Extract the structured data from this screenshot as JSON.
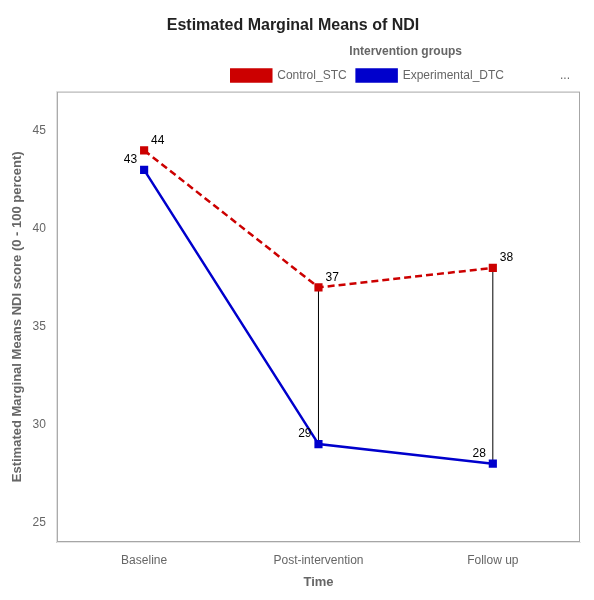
{
  "chart_data": {
    "type": "line",
    "title": "Estimated Marginal Means of NDI",
    "xlabel": "Time",
    "ylabel": "Estimated Marginal Means NDI score (0 - 100 percent)",
    "categories": [
      "Baseline",
      "Post-intervention",
      "Follow up"
    ],
    "series": [
      {
        "name": "Control_STC",
        "color": "#CC0000",
        "values": [
          44,
          37,
          38
        ],
        "marker": "square",
        "line_style": "dashed"
      },
      {
        "name": "Experimental_DTC",
        "color": "#0000CC",
        "values": [
          43,
          29,
          28
        ],
        "marker": "square",
        "line_style": "solid"
      }
    ],
    "ylim": [
      24,
      47
    ],
    "yticks": [
      25,
      30,
      35,
      40,
      45
    ],
    "grid": false,
    "legend": "upper right",
    "legend_title": "Intervention groups",
    "annotations": [
      "..."
    ],
    "data_labels": true
  }
}
